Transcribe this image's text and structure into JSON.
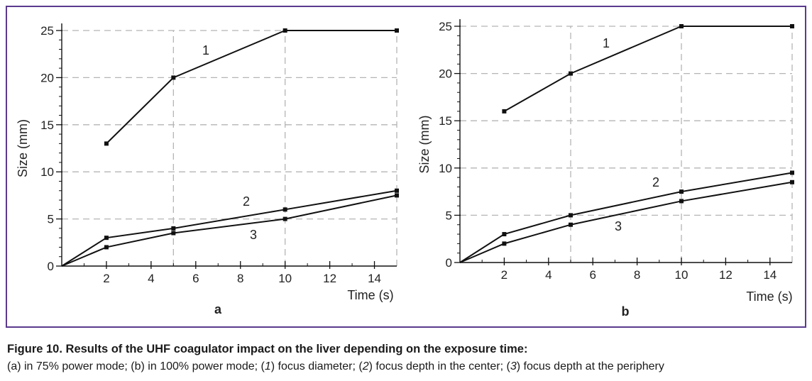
{
  "colors": {
    "frame": "#5b3a8e",
    "line": "#111111",
    "grid": "#b5b5b5"
  },
  "caption": {
    "title": "Figure 10. Results of the UHF coagulator impact on the liver depending on the exposure time:",
    "body_parts": [
      {
        "text": "(a) in 75% power mode; (b) in 100% power mode; (",
        "italic": false
      },
      {
        "text": "1",
        "italic": true
      },
      {
        "text": ") focus diameter; (",
        "italic": false
      },
      {
        "text": "2",
        "italic": true
      },
      {
        "text": ") focus depth in the center; (",
        "italic": false
      },
      {
        "text": "3",
        "italic": true
      },
      {
        "text": ") focus depth at the periphery",
        "italic": false
      }
    ]
  },
  "chart_data": [
    {
      "type": "line",
      "panel_label": "a",
      "xlabel": "Time (s)",
      "ylabel": "Size (mm)",
      "xlim": [
        0,
        15
      ],
      "ylim": [
        0,
        25
      ],
      "x_ticks": [
        2,
        4,
        6,
        8,
        10,
        12,
        14
      ],
      "y_ticks": [
        0,
        5,
        10,
        15,
        20,
        25
      ],
      "grid": true,
      "series": [
        {
          "name": "1",
          "x": [
            2,
            5,
            10,
            15
          ],
          "y": [
            13,
            20,
            25,
            25
          ],
          "start_marker": true
        },
        {
          "name": "2",
          "x": [
            0,
            2,
            5,
            10,
            15
          ],
          "y": [
            0,
            3,
            4,
            6,
            8
          ],
          "start_marker": false
        },
        {
          "name": "3",
          "x": [
            0,
            2,
            5,
            10,
            15
          ],
          "y": [
            0,
            2,
            3.5,
            5,
            7.5
          ],
          "start_marker": false
        }
      ]
    },
    {
      "type": "line",
      "panel_label": "b",
      "xlabel": "Time (s)",
      "ylabel": "Size (mm)",
      "xlim": [
        0,
        15
      ],
      "ylim": [
        0,
        25
      ],
      "x_ticks": [
        2,
        4,
        6,
        8,
        10,
        12,
        14
      ],
      "y_ticks": [
        0,
        5,
        10,
        15,
        20,
        25
      ],
      "grid": true,
      "series": [
        {
          "name": "1",
          "x": [
            2,
            5,
            10,
            15
          ],
          "y": [
            16,
            20,
            25,
            25
          ],
          "start_marker": true
        },
        {
          "name": "2",
          "x": [
            0,
            2,
            5,
            10,
            15
          ],
          "y": [
            0,
            3,
            5,
            7.5,
            9.5
          ],
          "start_marker": false
        },
        {
          "name": "3",
          "x": [
            0,
            2,
            5,
            10,
            15
          ],
          "y": [
            0,
            2,
            4,
            6.5,
            8.5
          ],
          "start_marker": false
        }
      ]
    }
  ]
}
